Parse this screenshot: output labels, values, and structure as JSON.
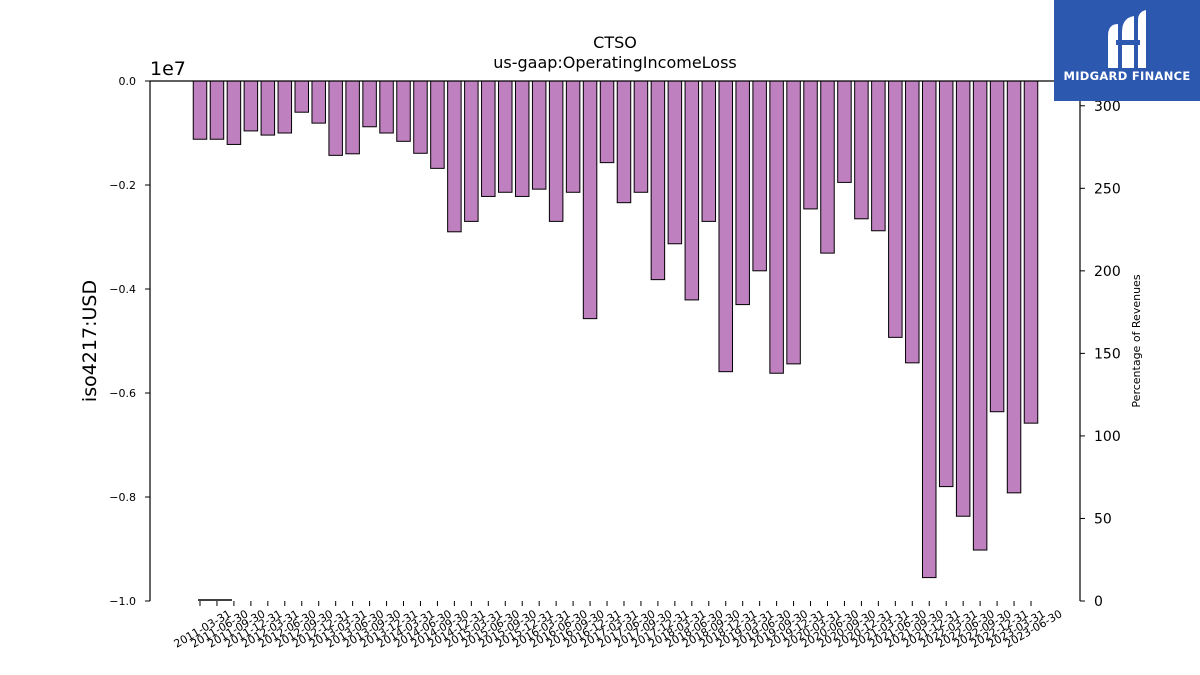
{
  "logo": {
    "text": "MIDGARD FINANCE",
    "background": "#2d58b0",
    "icon": "midgard-logo-mark"
  },
  "chart_data": {
    "type": "bar",
    "title": "CTSO",
    "subtitle": "us-gaap:OperatingIncomeLoss",
    "ylabel": "iso4217:USD",
    "y_multiplier_label": "1e7",
    "y2label": "Percentage of Revenues",
    "ylim": [
      -10000000,
      0
    ],
    "yticks": [
      0,
      -2000000,
      -4000000,
      -6000000,
      -8000000,
      -10000000
    ],
    "yticklabels": [
      "0.0",
      "−0.2",
      "−0.4",
      "−0.6",
      "−0.8",
      "−1.0"
    ],
    "y2lim": [
      0,
      315
    ],
    "y2ticks": [
      0,
      50,
      100,
      150,
      200,
      250,
      300
    ],
    "bar_color": "#bf80bf",
    "grid": false,
    "categories": [
      "2011-03-31",
      "2011-06-30",
      "2011-09-30",
      "2011-12-31",
      "2012-03-31",
      "2012-06-30",
      "2012-09-30",
      "2012-12-31",
      "2013-03-31",
      "2013-06-30",
      "2013-09-30",
      "2013-12-31",
      "2014-03-31",
      "2014-06-30",
      "2014-09-30",
      "2014-12-31",
      "2015-03-31",
      "2015-06-30",
      "2015-09-30",
      "2015-12-31",
      "2016-03-31",
      "2016-06-30",
      "2016-09-30",
      "2016-12-31",
      "2017-03-31",
      "2017-06-30",
      "2017-09-30",
      "2017-12-31",
      "2018-03-31",
      "2018-06-30",
      "2018-09-30",
      "2018-12-31",
      "2019-03-31",
      "2019-06-30",
      "2019-09-30",
      "2019-12-31",
      "2020-03-31",
      "2020-06-30",
      "2020-09-30",
      "2020-12-31",
      "2021-03-31",
      "2021-06-30",
      "2021-09-30",
      "2021-12-31",
      "2022-03-31",
      "2022-06-30",
      "2022-09-30",
      "2022-12-31",
      "2023-03-31",
      "2023-06-30"
    ],
    "tick_labels": [
      "2011-03-31",
      "2011-06-30",
      "2011-09-30",
      "2011-12-31",
      "2012-03-31",
      "2012-06-30",
      "2012-09-30",
      "2012-12-31",
      "2013-03-31",
      "2013-06-30",
      "2013-09-30",
      "2013-12-31",
      "2014-03-31",
      "2014-06-30",
      "2014-09-30",
      "2014-12-31",
      "2015-03-31",
      "2015-06-30",
      "2015-09-30",
      "2015-12-31",
      "2016-03-31",
      "2016-06-30",
      "2016-09-30",
      "2016-12-31",
      "2017-03-31",
      "2017-06-30",
      "2017-09-30",
      "2017-12-31",
      "2018-03-31",
      "2018-06-30",
      "2018-09-30",
      "2018-12-31",
      "2019-03-31",
      "2019-06-30",
      "2019-09-30",
      "2019-12-31",
      "2020-03-31",
      "2020-06-30",
      "2020-09-30",
      "2020-12-31",
      "2021-03-31",
      "2021-06-30",
      "2021-09-30",
      "2021-12-31",
      "2022-03-31",
      "2022-06-30",
      "2022-09-30",
      "2022-12-31",
      "2023-03-31",
      "2023-06-30"
    ],
    "values": [
      -1120000,
      -1120000,
      -1220000,
      -960000,
      -1040000,
      -1000000,
      -600000,
      -810000,
      -1430000,
      -1400000,
      -880000,
      -1000000,
      -1160000,
      -1390000,
      -1680000,
      -2900000,
      -2700000,
      -2220000,
      -2140000,
      -2220000,
      -2080000,
      -2700000,
      -2140000,
      -4570000,
      -1570000,
      -2340000,
      -2140000,
      -3820000,
      -3130000,
      -4210000,
      -2700000,
      -5590000,
      -4300000,
      -3650000,
      -5620000,
      -5440000,
      -2460000,
      -3310000,
      -1950000,
      -2650000,
      -2880000,
      -4930000,
      -5420000,
      -9550000,
      -7800000,
      -8370000,
      -9020000,
      -6360000,
      -7920000,
      -6580000
    ]
  }
}
